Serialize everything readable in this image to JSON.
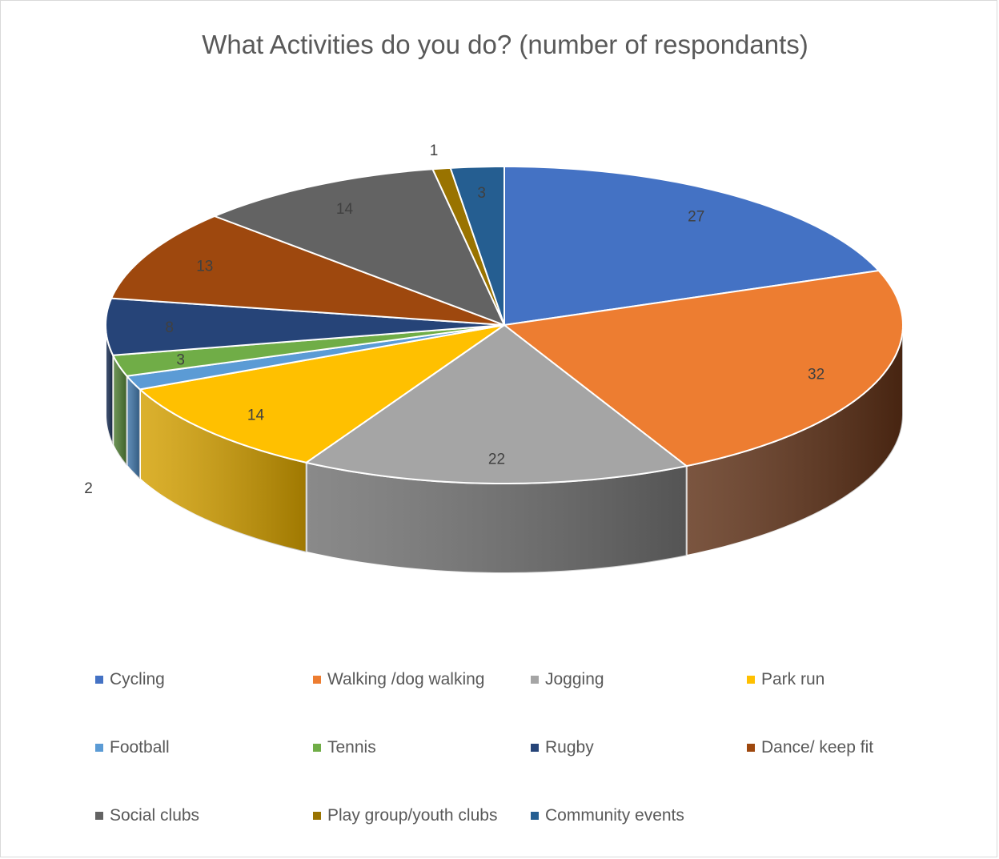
{
  "chart_data": {
    "type": "pie",
    "title": "What Activities do you do? (number of respondants)",
    "categories": [
      "Cycling",
      "Walking /dog walking",
      "Jogging",
      "Park run",
      "Football",
      "Tennis",
      "Rugby",
      "Dance/ keep fit",
      "Social clubs",
      "Play group/youth clubs",
      "Community events"
    ],
    "values": [
      27,
      32,
      22,
      14,
      2,
      3,
      8,
      13,
      14,
      1,
      3
    ],
    "colors": [
      "#4472c4",
      "#ed7d31",
      "#a5a5a5",
      "#ffc000",
      "#5b9bd5",
      "#70ad47",
      "#264478",
      "#9e480e",
      "#636363",
      "#997300",
      "#255e91"
    ],
    "side_colors": [
      "#2f5597",
      "#5e3016",
      "#707070",
      "#d4a000",
      "#3f75a8",
      "#4f7d33",
      "#1a2f55",
      "#6b300a",
      "#444444",
      "#6b5000",
      "#1a4266"
    ],
    "show_data_labels": true,
    "legend_position": "bottom"
  }
}
